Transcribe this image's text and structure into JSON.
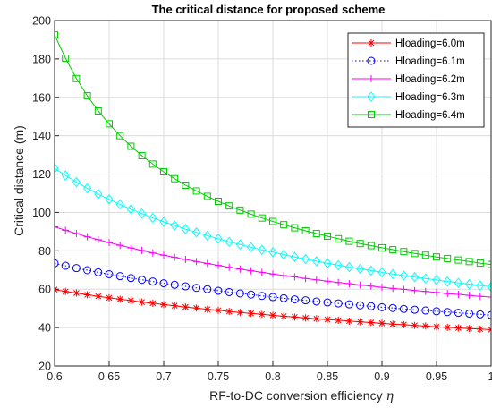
{
  "chart_data": {
    "type": "line",
    "title": "The critical distance for proposed scheme",
    "xlabel": "RF-to-DC conversion efficiency",
    "xlabel_symbol": "η",
    "ylabel": "Critical distance (m)",
    "xlim": [
      0.6,
      1.0
    ],
    "ylim": [
      20,
      200
    ],
    "xticks": [
      0.6,
      0.65,
      0.7,
      0.75,
      0.8,
      0.85,
      0.9,
      0.95,
      1
    ],
    "xtick_labels": [
      "0.6",
      "0.65",
      "0.7",
      "0.75",
      "0.8",
      "0.85",
      "0.9",
      "0.95",
      "1"
    ],
    "yticks": [
      20,
      40,
      60,
      80,
      100,
      120,
      140,
      160,
      180,
      200
    ],
    "ytick_labels": [
      "20",
      "40",
      "60",
      "80",
      "100",
      "120",
      "140",
      "160",
      "180",
      "200"
    ],
    "grid": true,
    "legend_position": "top-right",
    "x": [
      0.6,
      0.61,
      0.62,
      0.63,
      0.64,
      0.65,
      0.66,
      0.67,
      0.68,
      0.69,
      0.7,
      0.71,
      0.72,
      0.73,
      0.74,
      0.75,
      0.76,
      0.77,
      0.78,
      0.79,
      0.8,
      0.81,
      0.82,
      0.83,
      0.84,
      0.85,
      0.86,
      0.87,
      0.88,
      0.89,
      0.9,
      0.91,
      0.92,
      0.93,
      0.94,
      0.95,
      0.96,
      0.97,
      0.98,
      0.99,
      1.0
    ],
    "series": [
      {
        "name": "Hloading=6.0m",
        "color": "#ff0000",
        "marker": "asterisk",
        "line_style": "solid",
        "values": [
          59.8,
          58.8,
          58.0,
          57.1,
          56.3,
          55.5,
          54.8,
          54.1,
          53.3,
          52.7,
          52.0,
          51.4,
          50.7,
          50.2,
          49.5,
          49.0,
          48.4,
          47.9,
          47.4,
          46.9,
          46.4,
          45.9,
          45.5,
          45.0,
          44.6,
          44.2,
          43.8,
          43.4,
          43.0,
          42.6,
          42.2,
          41.8,
          41.5,
          41.1,
          40.8,
          40.4,
          40.1,
          39.8,
          39.5,
          39.2,
          38.9
        ]
      },
      {
        "name": "Hloading=6.1m",
        "color": "#0000ff",
        "marker": "circle",
        "line_style": "dotted",
        "values": [
          73.5,
          72.2,
          71.0,
          69.9,
          68.8,
          67.8,
          66.8,
          65.8,
          64.9,
          64.0,
          63.1,
          62.3,
          61.5,
          60.7,
          60.0,
          59.2,
          58.5,
          57.8,
          57.2,
          56.5,
          55.9,
          55.3,
          54.7,
          54.2,
          53.6,
          53.1,
          52.6,
          52.1,
          51.6,
          51.1,
          50.6,
          50.2,
          49.7,
          49.3,
          48.9,
          48.5,
          48.1,
          47.7,
          47.3,
          46.9,
          46.5
        ]
      },
      {
        "name": "Hloading=6.2m",
        "color": "#ff00ff",
        "marker": "plus",
        "line_style": "solid",
        "values": [
          92.5,
          90.7,
          89.0,
          87.3,
          85.8,
          84.3,
          82.9,
          81.5,
          80.2,
          78.9,
          77.7,
          76.6,
          75.5,
          74.4,
          73.4,
          72.4,
          71.4,
          70.5,
          69.6,
          68.8,
          67.9,
          67.1,
          66.4,
          65.6,
          64.9,
          64.2,
          63.5,
          62.9,
          62.2,
          61.6,
          61.0,
          60.4,
          59.9,
          59.3,
          58.8,
          58.3,
          57.7,
          57.3,
          56.8,
          56.3,
          55.9
        ]
      },
      {
        "name": "Hloading=6.3m",
        "color": "#00ffff",
        "marker": "diamond",
        "line_style": "solid",
        "values": [
          123.0,
          119.3,
          115.8,
          112.6,
          109.6,
          106.8,
          104.2,
          101.7,
          99.4,
          97.2,
          95.1,
          93.2,
          91.3,
          89.6,
          87.9,
          86.3,
          84.7,
          83.3,
          81.9,
          80.5,
          79.3,
          78.0,
          76.8,
          75.7,
          74.6,
          73.5,
          72.5,
          71.5,
          70.6,
          69.7,
          68.8,
          67.9,
          67.1,
          66.3,
          65.5,
          64.8,
          64.0,
          63.3,
          62.6,
          61.9,
          61.3
        ]
      },
      {
        "name": "Hloading=6.4m",
        "color": "#00cc00",
        "marker": "square",
        "line_style": "solid",
        "values": [
          192.5,
          180.4,
          169.8,
          160.8,
          152.9,
          146.2,
          140.0,
          134.5,
          129.6,
          125.2,
          121.2,
          117.6,
          114.2,
          111.2,
          108.4,
          105.8,
          103.4,
          101.2,
          99.1,
          97.1,
          95.3,
          93.6,
          92.0,
          90.4,
          89.0,
          87.6,
          86.3,
          85.0,
          83.8,
          82.7,
          81.6,
          80.6,
          79.6,
          78.6,
          77.7,
          76.8,
          76.0,
          75.2,
          74.4,
          73.6,
          72.9
        ]
      }
    ]
  }
}
